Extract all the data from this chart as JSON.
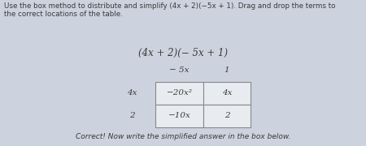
{
  "title_text": "Use the box method to distribute and simplify (4x + 2)(−5x + 1). Drag and drop the terms to\nthe correct locations of the table.",
  "expression": "(4x + 2)(− 5x + 1)",
  "bg_color": "#ccd3de",
  "col_headers": [
    "− 5x",
    "1"
  ],
  "row_headers": [
    "4x",
    "2"
  ],
  "cells": [
    [
      "−20x²",
      "4x"
    ],
    [
      "−10x",
      "2"
    ]
  ],
  "footer": "Correct! Now write the simplified answer in the box below.",
  "font_color": "#3a3a3a",
  "cell_bg": "#e8ecf0",
  "cell_border": "#888888"
}
